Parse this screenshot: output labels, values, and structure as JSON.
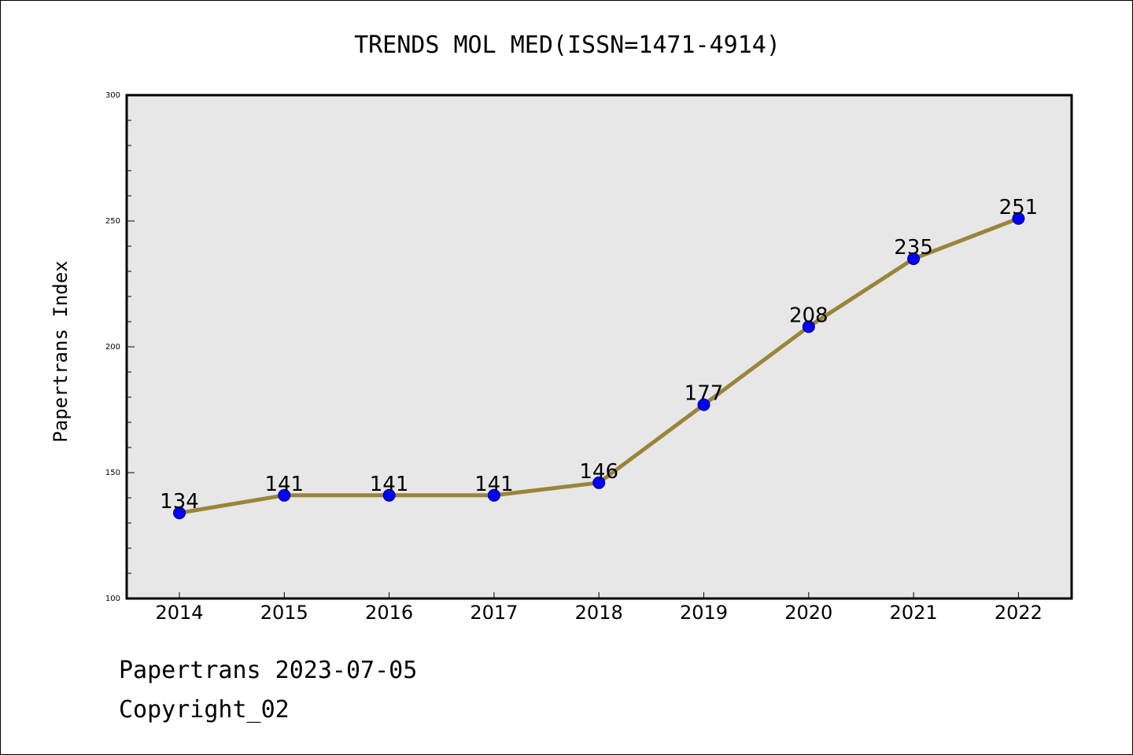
{
  "chart_data": {
    "type": "line",
    "title": "TRENDS MOL MED(ISSN=1471-4914)",
    "xlabel": "",
    "ylabel": "Papertrans Index",
    "categories": [
      "2014",
      "2015",
      "2016",
      "2017",
      "2018",
      "2019",
      "2020",
      "2021",
      "2022"
    ],
    "series": [
      {
        "values": [
          134,
          141,
          141,
          141,
          146,
          177,
          208,
          235,
          251
        ]
      }
    ],
    "data_labels": [
      "134",
      "141",
      "141",
      "141",
      "146",
      "177",
      "208",
      "235",
      "251"
    ],
    "ylim": [
      100,
      300
    ],
    "yticks": [
      "100",
      "150",
      "200",
      "250",
      "300"
    ],
    "grid": false,
    "legend": "none",
    "colors": {
      "line": "#9a8438",
      "marker_fill": "#0000ff",
      "marker_edge": "#00007a",
      "plot_background": "#e7e7e7",
      "axis": "#000000"
    }
  },
  "footer": {
    "line1": "Papertrans 2023-07-05",
    "line2": "Copyright_02"
  }
}
